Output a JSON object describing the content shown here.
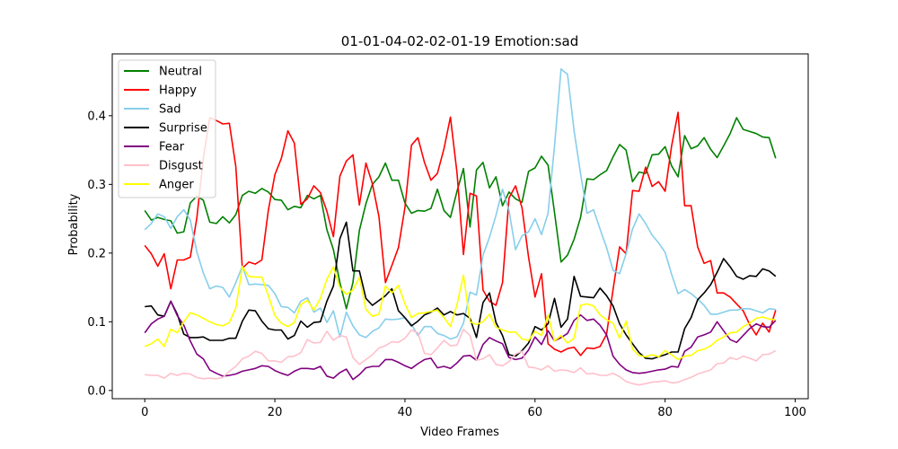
{
  "chart_data": {
    "type": "line",
    "title": "01-01-04-02-02-01-19 Emotion:sad",
    "xlabel": "Video Frames",
    "ylabel": "Probability",
    "xlim": [
      -5,
      102
    ],
    "ylim": [
      -0.012,
      0.49
    ],
    "xticks": [
      0,
      20,
      40,
      60,
      80,
      100
    ],
    "xtick_labels": [
      "0",
      "20",
      "40",
      "60",
      "80",
      "100"
    ],
    "yticks": [
      0.0,
      0.1,
      0.2,
      0.3,
      0.4
    ],
    "ytick_labels": [
      "0.0",
      "0.1",
      "0.2",
      "0.3",
      "0.4"
    ],
    "grid": false,
    "legend_position": "top-left",
    "x_start": 0,
    "series": [
      {
        "name": "Neutral",
        "color": "#008000",
        "values": [
          0.262,
          0.248,
          0.252,
          0.249,
          0.247,
          0.229,
          0.231,
          0.273,
          0.283,
          0.277,
          0.245,
          0.243,
          0.253,
          0.244,
          0.256,
          0.284,
          0.29,
          0.287,
          0.294,
          0.289,
          0.278,
          0.277,
          0.263,
          0.268,
          0.266,
          0.284,
          0.279,
          0.284,
          0.234,
          0.205,
          0.157,
          0.119,
          0.157,
          0.233,
          0.272,
          0.3,
          0.311,
          0.331,
          0.306,
          0.306,
          0.273,
          0.258,
          0.262,
          0.261,
          0.265,
          0.293,
          0.262,
          0.252,
          0.29,
          0.323,
          0.238,
          0.321,
          0.332,
          0.295,
          0.311,
          0.269,
          0.289,
          0.279,
          0.274,
          0.319,
          0.324,
          0.341,
          0.328,
          0.259,
          0.187,
          0.197,
          0.22,
          0.252,
          0.308,
          0.307,
          0.314,
          0.32,
          0.34,
          0.358,
          0.35,
          0.304,
          0.318,
          0.316,
          0.343,
          0.344,
          0.355,
          0.327,
          0.311,
          0.371,
          0.352,
          0.356,
          0.368,
          0.351,
          0.339,
          0.356,
          0.374,
          0.397,
          0.38,
          0.377,
          0.374,
          0.369,
          0.368,
          0.338
        ]
      },
      {
        "name": "Happy",
        "color": "#ff0000",
        "values": [
          0.211,
          0.199,
          0.181,
          0.199,
          0.148,
          0.19,
          0.19,
          0.194,
          0.251,
          0.338,
          0.397,
          0.393,
          0.388,
          0.389,
          0.326,
          0.178,
          0.187,
          0.184,
          0.19,
          0.262,
          0.314,
          0.338,
          0.378,
          0.36,
          0.271,
          0.279,
          0.298,
          0.288,
          0.261,
          0.224,
          0.312,
          0.334,
          0.343,
          0.27,
          0.331,
          0.301,
          0.253,
          0.157,
          0.182,
          0.208,
          0.266,
          0.357,
          0.368,
          0.332,
          0.306,
          0.316,
          0.352,
          0.398,
          0.317,
          0.198,
          0.287,
          0.283,
          0.146,
          0.13,
          0.124,
          0.157,
          0.28,
          0.298,
          0.266,
          0.194,
          0.136,
          0.17,
          0.068,
          0.06,
          0.056,
          0.061,
          0.063,
          0.051,
          0.062,
          0.061,
          0.064,
          0.082,
          0.147,
          0.209,
          0.199,
          0.291,
          0.29,
          0.325,
          0.297,
          0.304,
          0.29,
          0.356,
          0.405,
          0.269,
          0.269,
          0.209,
          0.185,
          0.189,
          0.142,
          0.142,
          0.136,
          0.126,
          0.116,
          0.096,
          0.081,
          0.098,
          0.085,
          0.117
        ]
      },
      {
        "name": "Sad",
        "color": "#87ceeb",
        "values": [
          0.234,
          0.243,
          0.257,
          0.253,
          0.236,
          0.253,
          0.263,
          0.248,
          0.202,
          0.171,
          0.148,
          0.152,
          0.15,
          0.136,
          0.157,
          0.181,
          0.154,
          0.155,
          0.154,
          0.153,
          0.141,
          0.122,
          0.121,
          0.113,
          0.13,
          0.135,
          0.114,
          0.12,
          0.099,
          0.116,
          0.078,
          0.114,
          0.094,
          0.081,
          0.077,
          0.086,
          0.091,
          0.104,
          0.103,
          0.104,
          0.106,
          0.096,
          0.08,
          0.093,
          0.093,
          0.083,
          0.08,
          0.075,
          0.078,
          0.098,
          0.143,
          0.139,
          0.197,
          0.223,
          0.255,
          0.293,
          0.262,
          0.205,
          0.225,
          0.231,
          0.25,
          0.227,
          0.258,
          0.356,
          0.468,
          0.46,
          0.378,
          0.316,
          0.258,
          0.263,
          0.235,
          0.208,
          0.175,
          0.17,
          0.199,
          0.235,
          0.257,
          0.243,
          0.226,
          0.215,
          0.201,
          0.169,
          0.141,
          0.147,
          0.141,
          0.133,
          0.124,
          0.111,
          0.111,
          0.114,
          0.117,
          0.117,
          0.119,
          0.119,
          0.116,
          0.113,
          0.119,
          0.118
        ]
      },
      {
        "name": "Surprise",
        "color": "#000000",
        "values": [
          0.122,
          0.123,
          0.11,
          0.108,
          0.13,
          0.111,
          0.082,
          0.077,
          0.077,
          0.078,
          0.073,
          0.073,
          0.073,
          0.076,
          0.076,
          0.101,
          0.117,
          0.116,
          0.101,
          0.09,
          0.088,
          0.088,
          0.075,
          0.08,
          0.101,
          0.092,
          0.099,
          0.1,
          0.13,
          0.152,
          0.221,
          0.245,
          0.174,
          0.174,
          0.134,
          0.124,
          0.131,
          0.138,
          0.148,
          0.116,
          0.106,
          0.094,
          0.101,
          0.11,
          0.114,
          0.12,
          0.11,
          0.115,
          0.11,
          0.112,
          0.105,
          0.077,
          0.128,
          0.142,
          0.099,
          0.08,
          0.052,
          0.05,
          0.058,
          0.069,
          0.093,
          0.088,
          0.097,
          0.134,
          0.092,
          0.104,
          0.166,
          0.137,
          0.136,
          0.135,
          0.149,
          0.138,
          0.123,
          0.097,
          0.081,
          0.068,
          0.055,
          0.047,
          0.046,
          0.049,
          0.052,
          0.056,
          0.056,
          0.09,
          0.106,
          0.132,
          0.142,
          0.154,
          0.172,
          0.192,
          0.18,
          0.166,
          0.162,
          0.167,
          0.166,
          0.177,
          0.174,
          0.166
        ]
      },
      {
        "name": "Fear",
        "color": "#800080",
        "values": [
          0.084,
          0.097,
          0.104,
          0.108,
          0.13,
          0.109,
          0.095,
          0.072,
          0.053,
          0.046,
          0.03,
          0.025,
          0.021,
          0.022,
          0.024,
          0.028,
          0.03,
          0.032,
          0.036,
          0.035,
          0.029,
          0.025,
          0.022,
          0.028,
          0.032,
          0.032,
          0.031,
          0.035,
          0.021,
          0.018,
          0.026,
          0.031,
          0.016,
          0.023,
          0.033,
          0.035,
          0.035,
          0.045,
          0.045,
          0.041,
          0.036,
          0.032,
          0.039,
          0.045,
          0.047,
          0.033,
          0.035,
          0.032,
          0.04,
          0.05,
          0.051,
          0.044,
          0.067,
          0.077,
          0.072,
          0.068,
          0.048,
          0.045,
          0.047,
          0.059,
          0.078,
          0.067,
          0.087,
          0.072,
          0.077,
          0.083,
          0.102,
          0.11,
          0.102,
          0.104,
          0.095,
          0.081,
          0.05,
          0.038,
          0.03,
          0.026,
          0.025,
          0.026,
          0.028,
          0.03,
          0.031,
          0.035,
          0.034,
          0.057,
          0.063,
          0.078,
          0.081,
          0.085,
          0.1,
          0.087,
          0.074,
          0.07,
          0.08,
          0.09,
          0.097,
          0.093,
          0.092,
          0.102
        ]
      },
      {
        "name": "Disgust",
        "color": "#ffc0cb",
        "values": [
          0.023,
          0.022,
          0.022,
          0.018,
          0.025,
          0.022,
          0.025,
          0.024,
          0.019,
          0.017,
          0.018,
          0.017,
          0.019,
          0.028,
          0.035,
          0.046,
          0.05,
          0.057,
          0.054,
          0.043,
          0.043,
          0.041,
          0.049,
          0.05,
          0.055,
          0.074,
          0.069,
          0.07,
          0.086,
          0.073,
          0.08,
          0.078,
          0.048,
          0.038,
          0.045,
          0.052,
          0.062,
          0.065,
          0.071,
          0.07,
          0.076,
          0.088,
          0.084,
          0.054,
          0.052,
          0.062,
          0.073,
          0.065,
          0.066,
          0.089,
          0.08,
          0.044,
          0.046,
          0.052,
          0.038,
          0.036,
          0.042,
          0.053,
          0.057,
          0.034,
          0.033,
          0.03,
          0.036,
          0.028,
          0.03,
          0.029,
          0.026,
          0.033,
          0.024,
          0.025,
          0.022,
          0.022,
          0.025,
          0.02,
          0.013,
          0.01,
          0.008,
          0.01,
          0.012,
          0.013,
          0.014,
          0.011,
          0.012,
          0.016,
          0.019,
          0.024,
          0.027,
          0.03,
          0.039,
          0.04,
          0.048,
          0.045,
          0.05,
          0.047,
          0.043,
          0.052,
          0.053,
          0.058
        ]
      },
      {
        "name": "Anger",
        "color": "#ffff00",
        "values": [
          0.064,
          0.068,
          0.075,
          0.064,
          0.089,
          0.084,
          0.1,
          0.113,
          0.11,
          0.105,
          0.1,
          0.096,
          0.094,
          0.099,
          0.12,
          0.18,
          0.166,
          0.165,
          0.165,
          0.138,
          0.109,
          0.098,
          0.093,
          0.099,
          0.125,
          0.131,
          0.117,
          0.134,
          0.162,
          0.18,
          0.15,
          0.14,
          0.146,
          0.165,
          0.118,
          0.108,
          0.111,
          0.152,
          0.142,
          0.153,
          0.126,
          0.106,
          0.112,
          0.113,
          0.115,
          0.117,
          0.106,
          0.093,
          0.125,
          0.168,
          0.1,
          0.096,
          0.1,
          0.111,
          0.092,
          0.088,
          0.085,
          0.085,
          0.075,
          0.073,
          0.086,
          0.08,
          0.11,
          0.072,
          0.08,
          0.069,
          0.076,
          0.124,
          0.126,
          0.123,
          0.11,
          0.103,
          0.098,
          0.076,
          0.101,
          0.06,
          0.051,
          0.049,
          0.052,
          0.049,
          0.058,
          0.052,
          0.045,
          0.05,
          0.051,
          0.058,
          0.06,
          0.065,
          0.073,
          0.078,
          0.084,
          0.085,
          0.093,
          0.098,
          0.105,
          0.107,
          0.104,
          0.103
        ]
      }
    ]
  }
}
